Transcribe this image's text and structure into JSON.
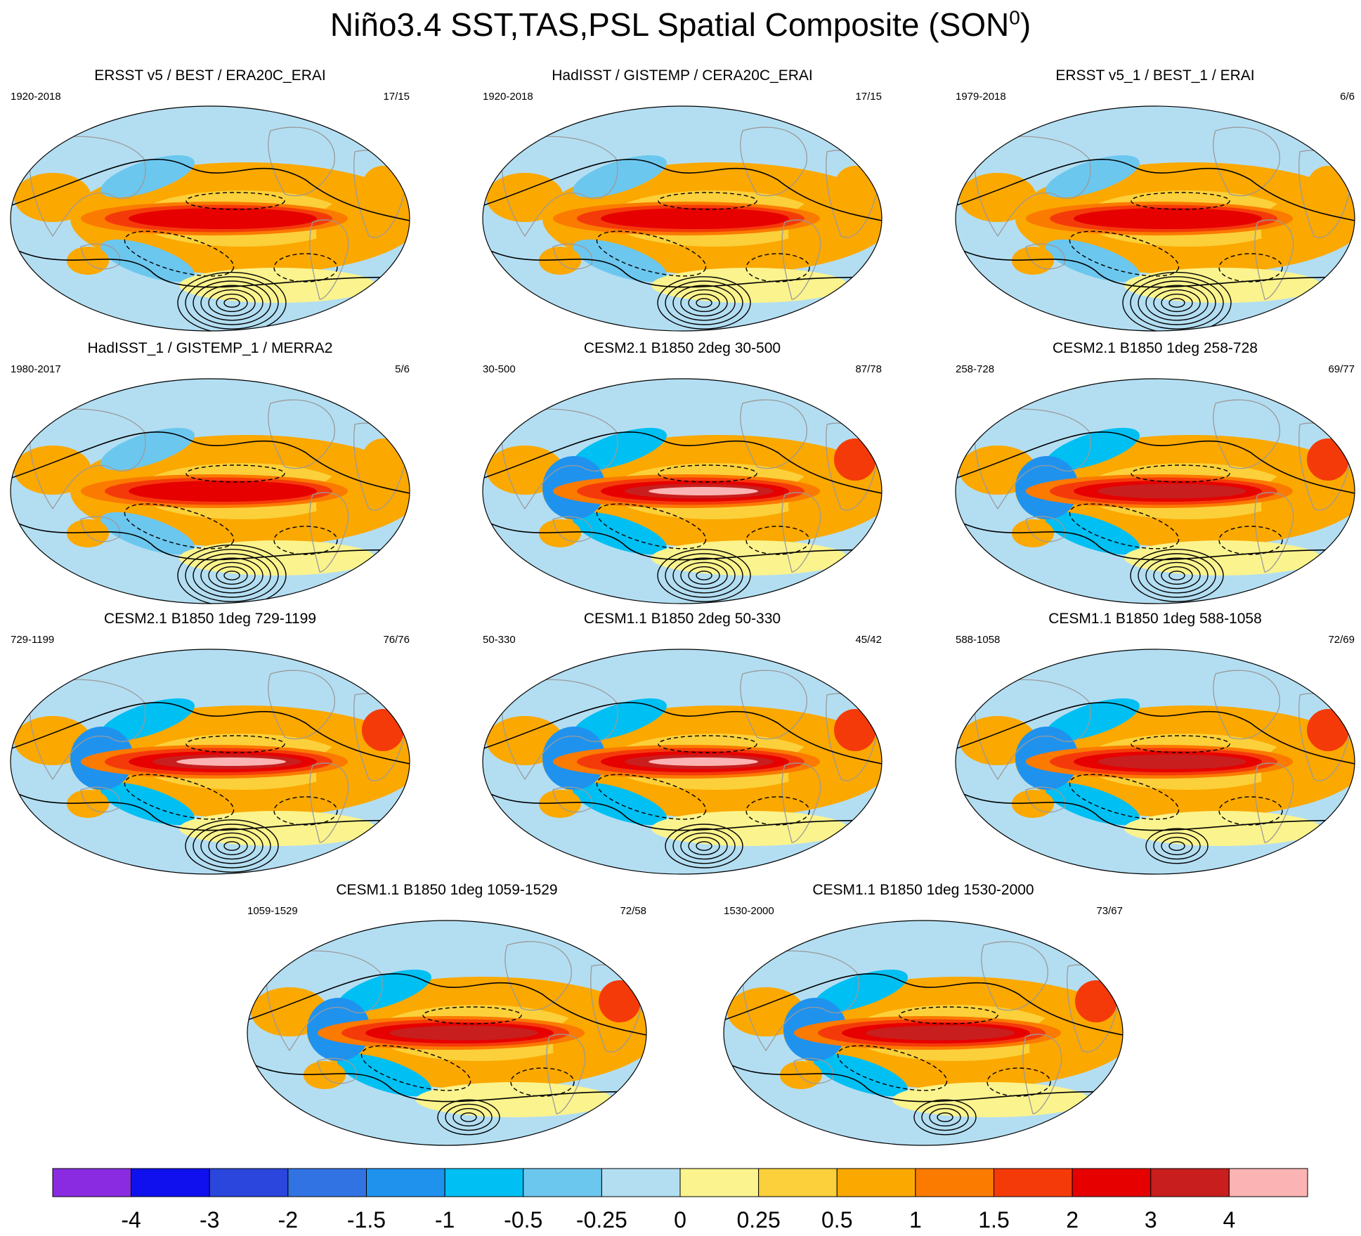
{
  "title_main": "Niño3.4 SST,TAS,PSL Spatial Composite (SON",
  "title_sup": "0",
  "title_close": ")",
  "colors": {
    "land_outline": "#9a9a9a",
    "contour": "#000000",
    "background_ocean": "#b3def2"
  },
  "panels": [
    {
      "title": "ERSST v5 / BEST / ERA20C_ERAI",
      "years": "1920-2018",
      "count": "17/15"
    },
    {
      "title": "HadISST / GISTEMP / CERA20C_ERAI",
      "years": "1920-2018",
      "count": "17/15"
    },
    {
      "title": "ERSST v5_1 / BEST_1 / ERAI",
      "years": "1979-2018",
      "count": "6/6"
    },
    {
      "title": "HadISST_1 / GISTEMP_1 / MERRA2",
      "years": "1980-2017",
      "count": "5/6"
    },
    {
      "title": "CESM2.1 B1850 2deg 30-500",
      "years": "30-500",
      "count": "87/78"
    },
    {
      "title": "CESM2.1 B1850 1deg 258-728",
      "years": "258-728",
      "count": "69/77"
    },
    {
      "title": "CESM2.1 B1850 1deg 729-1199",
      "years": "729-1199",
      "count": "76/76"
    },
    {
      "title": "CESM1.1 B1850 2deg 50-330",
      "years": "50-330",
      "count": "45/42"
    },
    {
      "title": "CESM1.1 B1850 1deg 588-1058",
      "years": "588-1058",
      "count": "72/69"
    },
    {
      "title": "CESM1.1 B1850 1deg 1059-1529",
      "years": "1059-1529",
      "count": "72/58"
    },
    {
      "title": "CESM1.1 B1850 1deg 1530-2000",
      "years": "1530-2000",
      "count": "73/67"
    }
  ],
  "chart_data": {
    "type": "heatmap",
    "title": "Niño3.4 SST,TAS,PSL Spatial Composite (SON0)",
    "projection": "Robinson",
    "variables": [
      "SST",
      "TAS",
      "PSL"
    ],
    "colorbar": {
      "levels": [
        "-4",
        "-3",
        "-2",
        "-1.5",
        "-1",
        "-0.5",
        "-0.25",
        "0",
        "0.25",
        "0.5",
        "1",
        "1.5",
        "2",
        "3",
        "4"
      ],
      "colors": [
        "#8a2be2",
        "#1010ee",
        "#2a46dc",
        "#3273e4",
        "#1f92ee",
        "#00bff3",
        "#6cc7ef",
        "#b3def2",
        "#fbf38d",
        "#fbd03a",
        "#fba800",
        "#fb7a00",
        "#f53a0a",
        "#e60000",
        "#c81e1e",
        "#fbb3b3"
      ]
    },
    "maps": [
      {
        "panel": "ERSST v5 / BEST / ERA20C_ERAI",
        "peak_anomaly": 2,
        "psl_low_rings": 7
      },
      {
        "panel": "HadISST / GISTEMP / CERA20C_ERAI",
        "peak_anomaly": 2,
        "psl_low_rings": 6
      },
      {
        "panel": "ERSST v5_1 / BEST_1 / ERAI",
        "peak_anomaly": 2,
        "psl_low_rings": 7
      },
      {
        "panel": "HadISST_1 / GISTEMP_1 / MERRA2",
        "peak_anomaly": 2,
        "psl_low_rings": 7
      },
      {
        "panel": "CESM2.1 B1850 2deg 30-500",
        "peak_anomaly": 4,
        "psl_low_rings": 6
      },
      {
        "panel": "CESM2.1 B1850 1deg 258-728",
        "peak_anomaly": 3,
        "psl_low_rings": 6
      },
      {
        "panel": "CESM2.1 B1850 1deg 729-1199",
        "peak_anomaly": 4,
        "psl_low_rings": 6
      },
      {
        "panel": "CESM1.1 B1850 2deg 50-330",
        "peak_anomaly": 4,
        "psl_low_rings": 5
      },
      {
        "panel": "CESM1.1 B1850 1deg 588-1058",
        "peak_anomaly": 3,
        "psl_low_rings": 4
      },
      {
        "panel": "CESM1.1 B1850 1deg 1059-1529",
        "peak_anomaly": 3,
        "psl_low_rings": 4
      },
      {
        "panel": "CESM1.1 B1850 1deg 1530-2000",
        "peak_anomaly": 3,
        "psl_low_rings": 4
      }
    ]
  }
}
